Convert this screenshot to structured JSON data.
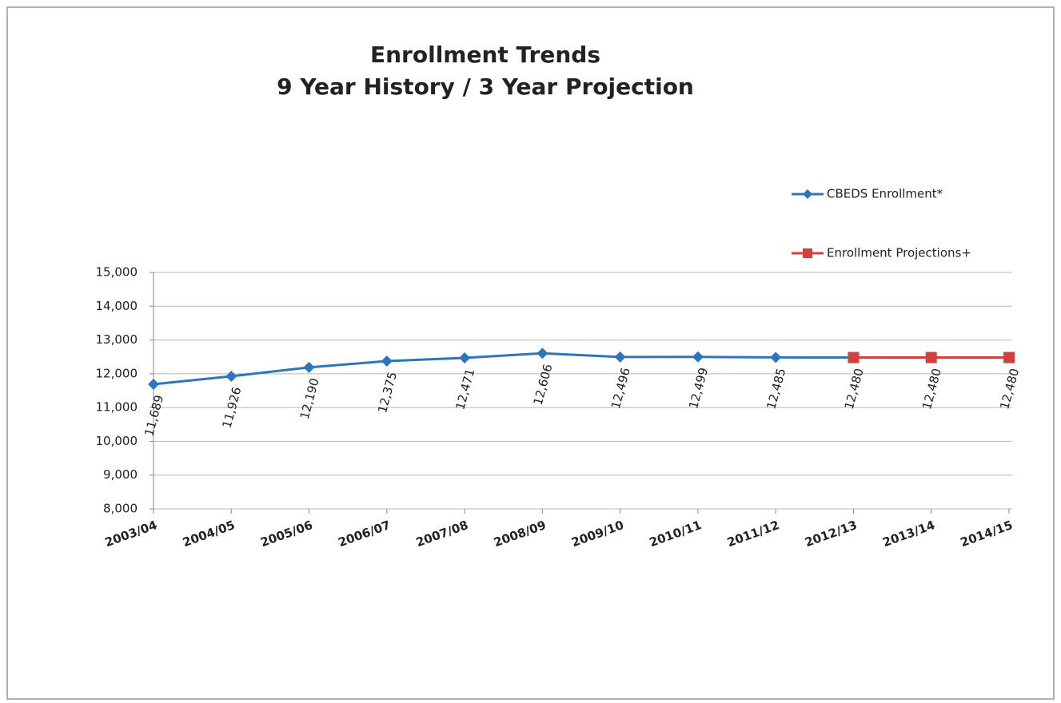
{
  "chart_data": {
    "type": "line",
    "title": [
      "Enrollment Trends",
      "9 Year History / 3 Year Projection"
    ],
    "categories": [
      "2003/04",
      "2004/05",
      "2005/06",
      "2006/07",
      "2007/08",
      "2008/09",
      "2009/10",
      "2010/11",
      "2011/12",
      "2012/13",
      "2013/14",
      "2014/15"
    ],
    "series": [
      {
        "name": "CBEDS Enrollment*",
        "color": "#2e75c0",
        "marker": "diamond",
        "values": [
          11689,
          11926,
          12190,
          12375,
          12471,
          12606,
          12496,
          12499,
          12485,
          12480,
          null,
          null
        ],
        "value_labels": [
          "11,689",
          "11,926",
          "12,190",
          "12,375",
          "12,471",
          "12,606",
          "12,496",
          "12,499",
          "12,485",
          null,
          null,
          null
        ]
      },
      {
        "name": "Enrollment Projections+",
        "color": "#d0403f",
        "marker": "square",
        "values": [
          null,
          null,
          null,
          null,
          null,
          null,
          null,
          null,
          null,
          12480,
          12480,
          12480
        ],
        "value_labels": [
          null,
          null,
          null,
          null,
          null,
          null,
          null,
          null,
          null,
          "12,480",
          "12,480",
          "12,480"
        ]
      }
    ],
    "ylim": [
      8000,
      15000
    ],
    "yticks": [
      {
        "value": 8000,
        "label": "8,000"
      },
      {
        "value": 9000,
        "label": "9,000"
      },
      {
        "value": 10000,
        "label": "10,000"
      },
      {
        "value": 11000,
        "label": "11,000"
      },
      {
        "value": 12000,
        "label": "12,000"
      },
      {
        "value": 13000,
        "label": "13,000"
      },
      {
        "value": 14000,
        "label": "14,000"
      },
      {
        "value": 15000,
        "label": "15,000"
      }
    ],
    "grid": true,
    "legend": "top-right"
  }
}
